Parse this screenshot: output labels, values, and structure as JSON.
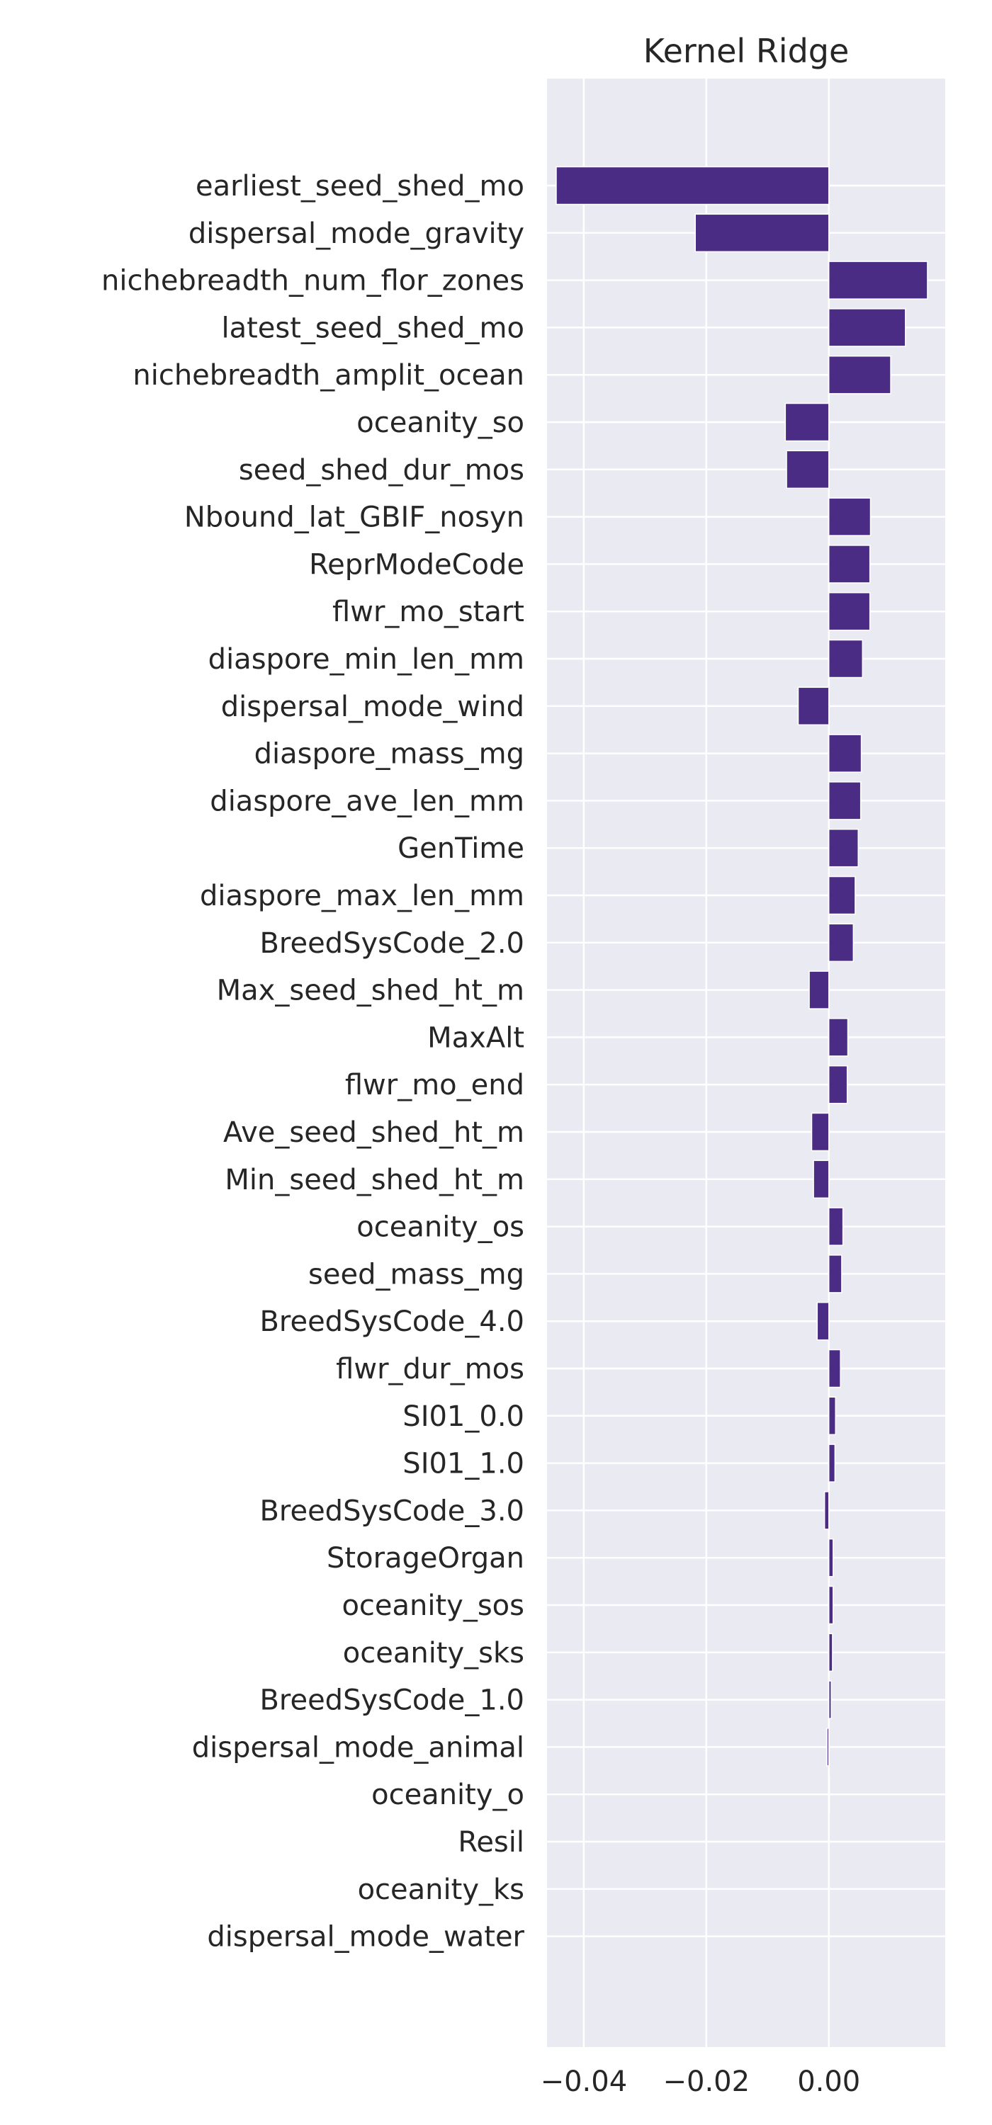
{
  "chart_data": {
    "type": "bar",
    "orientation": "horizontal",
    "title": "Kernel Ridge",
    "xlabel": "",
    "ylabel": "",
    "xlim": [
      -0.046,
      0.019
    ],
    "xticks": [
      -0.04,
      -0.02,
      0.0
    ],
    "xtick_labels": [
      "−0.04",
      "−0.02",
      "0.00"
    ],
    "grid": true,
    "bar_color": "#4b2c84",
    "background": "#eaeaf2",
    "categories": [
      "earliest_seed_shed_mo",
      "dispersal_mode_gravity",
      "nichebreadth_num_flor_zones",
      "latest_seed_shed_mo",
      "nichebreadth_amplit_ocean",
      "oceanity_so",
      "seed_shed_dur_mos",
      "Nbound_lat_GBIF_nosyn",
      "ReprModeCode",
      "flwr_mo_start",
      "diaspore_min_len_mm",
      "dispersal_mode_wind",
      "diaspore_mass_mg",
      "diaspore_ave_len_mm",
      "GenTime",
      "diaspore_max_len_mm",
      "BreedSysCode_2.0",
      "Max_seed_shed_ht_m",
      "MaxAlt",
      "flwr_mo_end",
      "Ave_seed_shed_ht_m",
      "Min_seed_shed_ht_m",
      "oceanity_os",
      "seed_mass_mg",
      "BreedSysCode_4.0",
      "flwr_dur_mos",
      "SI01_0.0",
      "SI01_1.0",
      "BreedSysCode_3.0",
      "StorageOrgan",
      "oceanity_sos",
      "oceanity_sks",
      "BreedSysCode_1.0",
      "dispersal_mode_animal",
      "oceanity_o",
      "Resil",
      "oceanity_ks",
      "dispersal_mode_water"
    ],
    "values": [
      -0.0445,
      -0.0218,
      0.0161,
      0.0125,
      0.0101,
      -0.0071,
      -0.0069,
      0.0068,
      0.0067,
      0.0067,
      0.0055,
      -0.005,
      0.0053,
      0.0052,
      0.0048,
      0.0043,
      0.004,
      -0.0032,
      0.0031,
      0.003,
      -0.0028,
      -0.0025,
      0.0023,
      0.0021,
      -0.0019,
      0.0019,
      0.0011,
      0.001,
      -0.0007,
      0.0007,
      0.0007,
      0.0006,
      0.0004,
      -0.0003,
      0.0001,
      0.0,
      0.0,
      0.0
    ]
  }
}
